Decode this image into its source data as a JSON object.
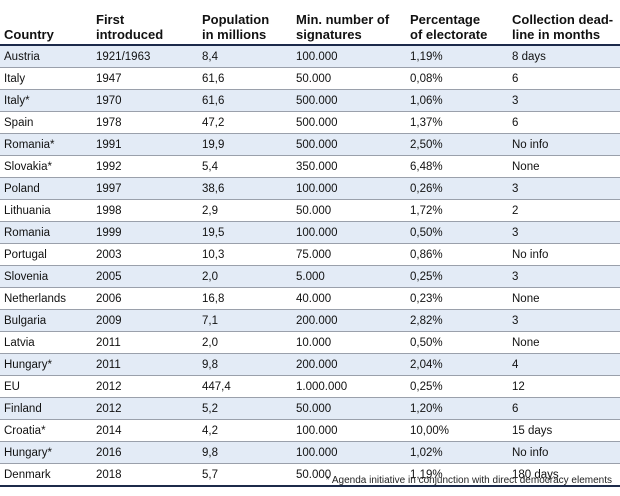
{
  "headers": [
    "Country",
    "First\nintroduced",
    "Population\nin millions",
    "Min. number of\nsignatures",
    "Percentage\nof electorate",
    "Collection dead-\nline in months"
  ],
  "rows": [
    [
      "Austria",
      "1921/1963",
      "8,4",
      "100.000",
      "1,19%",
      "8 days"
    ],
    [
      "Italy",
      "1947",
      "61,6",
      "50.000",
      "0,08%",
      "6"
    ],
    [
      "Italy*",
      "1970",
      "61,6",
      "500.000",
      "1,06%",
      "3"
    ],
    [
      "Spain",
      "1978",
      "47,2",
      "500.000",
      "1,37%",
      "6"
    ],
    [
      "Romania*",
      "1991",
      "19,9",
      "500.000",
      "2,50%",
      "No info"
    ],
    [
      "Slovakia*",
      "1992",
      "5,4",
      "350.000",
      "6,48%",
      "None"
    ],
    [
      "Poland",
      "1997",
      "38,6",
      "100.000",
      "0,26%",
      "3"
    ],
    [
      "Lithuania",
      "1998",
      "2,9",
      "50.000",
      "1,72%",
      "2"
    ],
    [
      "Romania",
      "1999",
      "19,5",
      "100.000",
      "0,50%",
      "3"
    ],
    [
      "Portugal",
      "2003",
      "10,3",
      "75.000",
      "0,86%",
      "No info"
    ],
    [
      "Slovenia",
      "2005",
      "2,0",
      "5.000",
      "0,25%",
      "3"
    ],
    [
      "Netherlands",
      "2006",
      "16,8",
      "40.000",
      "0,23%",
      "None"
    ],
    [
      "Bulgaria",
      "2009",
      "7,1",
      "200.000",
      "2,82%",
      "3"
    ],
    [
      "Latvia",
      "2011",
      "2,0",
      "10.000",
      "0,50%",
      "None"
    ],
    [
      "Hungary*",
      "2011",
      "9,8",
      "200.000",
      "2,04%",
      "4"
    ],
    [
      "EU",
      "2012",
      "447,4",
      "1.000.000",
      "0,25%",
      "12"
    ],
    [
      "Finland",
      "2012",
      "5,2",
      "50.000",
      "1,20%",
      "6"
    ],
    [
      "Croatia*",
      "2014",
      "4,2",
      "100.000",
      "10,00%",
      "15 days"
    ],
    [
      "Hungary*",
      "2016",
      "9,8",
      "100.000",
      "1,02%",
      "No info"
    ],
    [
      "Denmark",
      "2018",
      "5,7",
      "50.000",
      "1,19%",
      "180 days"
    ]
  ],
  "footnote": "* Agenda initiative in conjunction with direct democracy elements"
}
